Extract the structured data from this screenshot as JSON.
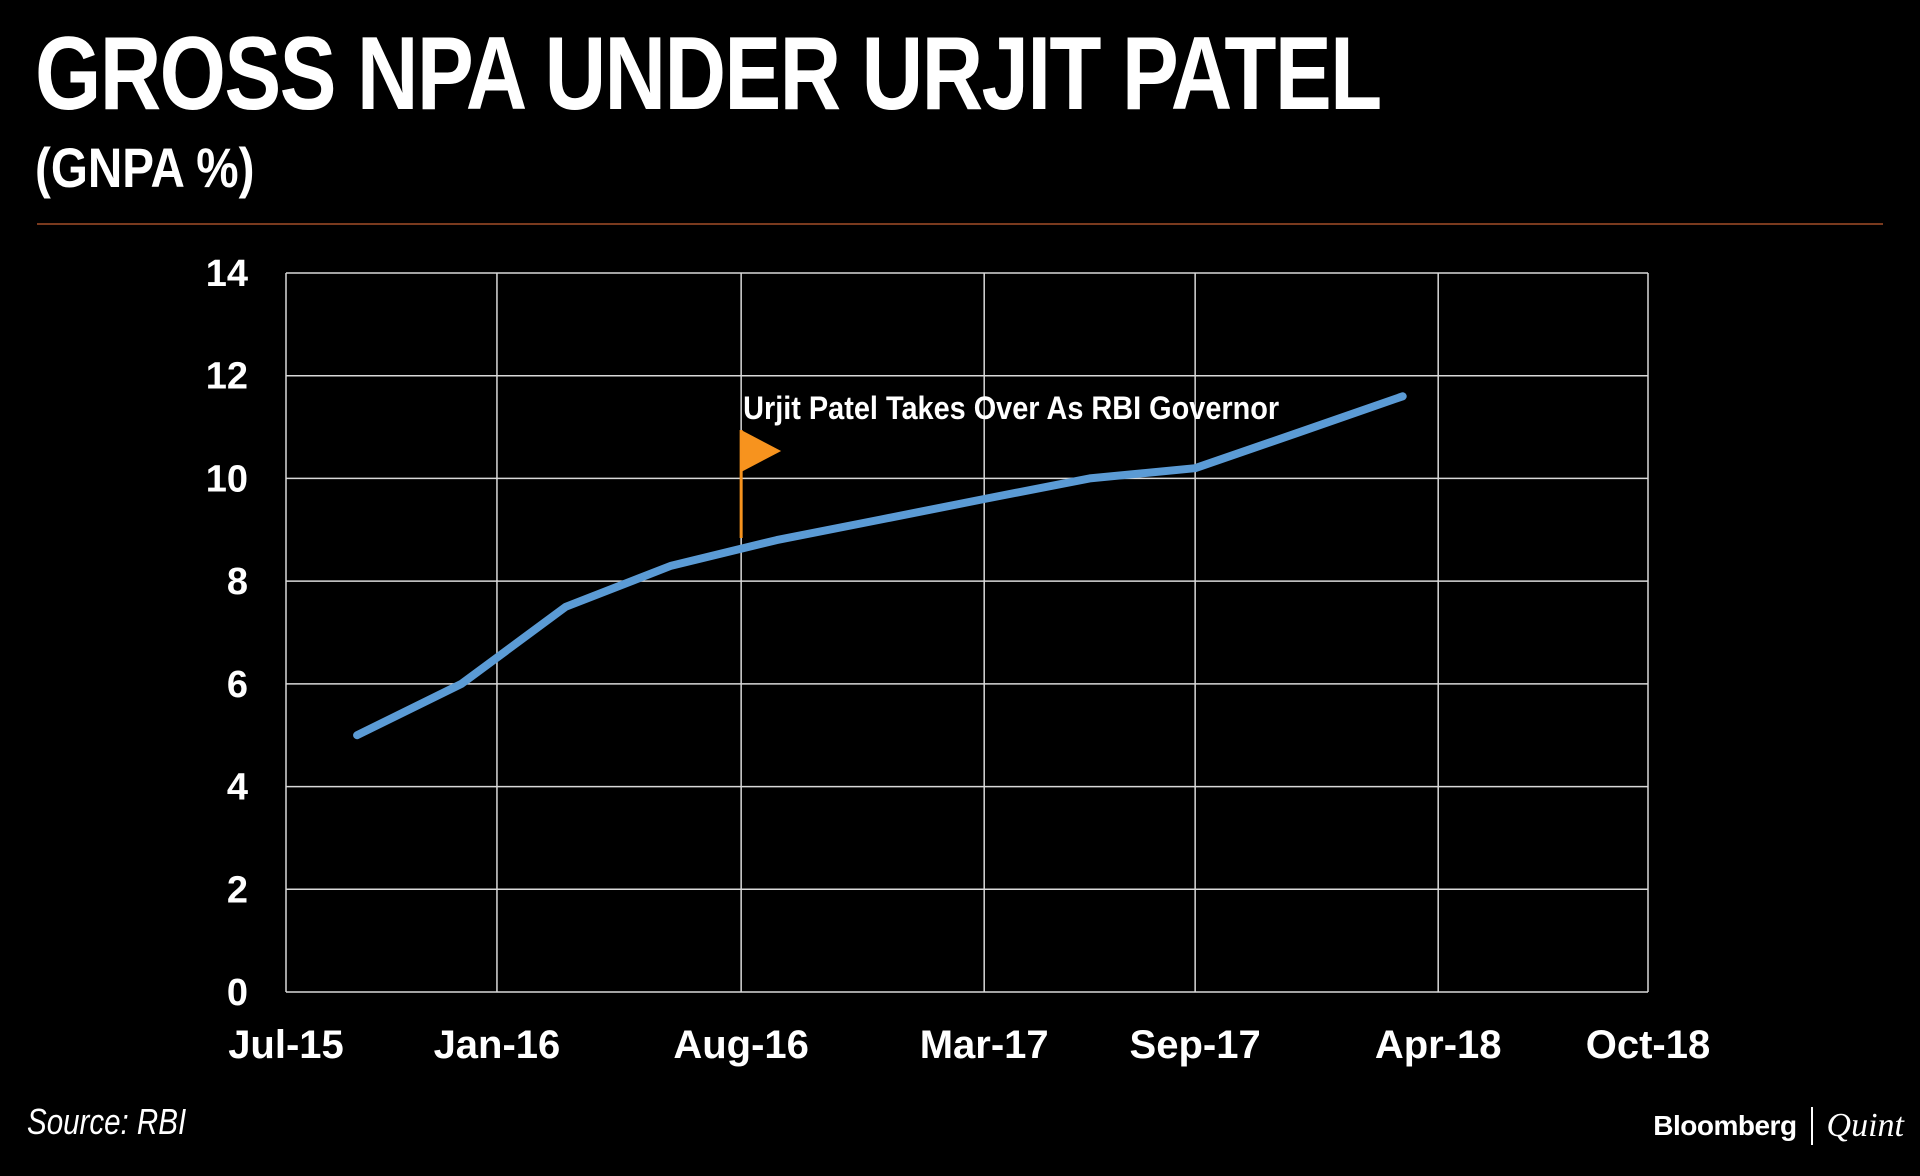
{
  "header": {
    "title": "GROSS NPA UNDER URJIT PATEL",
    "subtitle": "(GNPA %)"
  },
  "footer": {
    "source": "Source: RBI",
    "brand_primary": "Bloomberg",
    "brand_secondary": "Quint"
  },
  "colors": {
    "background": "#000000",
    "line": "#5b9bd5",
    "grid": "#d9d9d9",
    "annotation_flag": "#f7931e",
    "rule": "#7a3a1e"
  },
  "chart_data": {
    "type": "line",
    "title": "GROSS NPA UNDER URJIT PATEL",
    "subtitle": "(GNPA %)",
    "x_tick_labels": [
      "Jul-15",
      "Jan-16",
      "Aug-16",
      "Mar-17",
      "Sep-17",
      "Apr-18",
      "Oct-18"
    ],
    "x_tick_dates": [
      "2015-07-01",
      "2016-01-01",
      "2016-08-01",
      "2017-03-01",
      "2017-09-01",
      "2018-04-01",
      "2018-10-01"
    ],
    "ylim": [
      0,
      14
    ],
    "y_ticks": [
      0,
      2,
      4,
      6,
      8,
      10,
      12,
      14
    ],
    "grid": true,
    "legend": "none",
    "series": [
      {
        "x": [
          "2015-09-01",
          "2015-12-01",
          "2016-03-01",
          "2016-06-01",
          "2016-09-01",
          "2016-12-01",
          "2017-03-01",
          "2017-06-01",
          "2017-09-01",
          "2017-12-01",
          "2018-03-01"
        ],
        "values": [
          5.0,
          6.0,
          7.5,
          8.3,
          8.8,
          9.2,
          9.6,
          10.0,
          10.2,
          10.9,
          11.6
        ]
      }
    ],
    "annotations": [
      {
        "text": "Urjit Patel Takes Over As RBI Governor",
        "x": "2016-08-01",
        "marker": "flag"
      }
    ]
  }
}
